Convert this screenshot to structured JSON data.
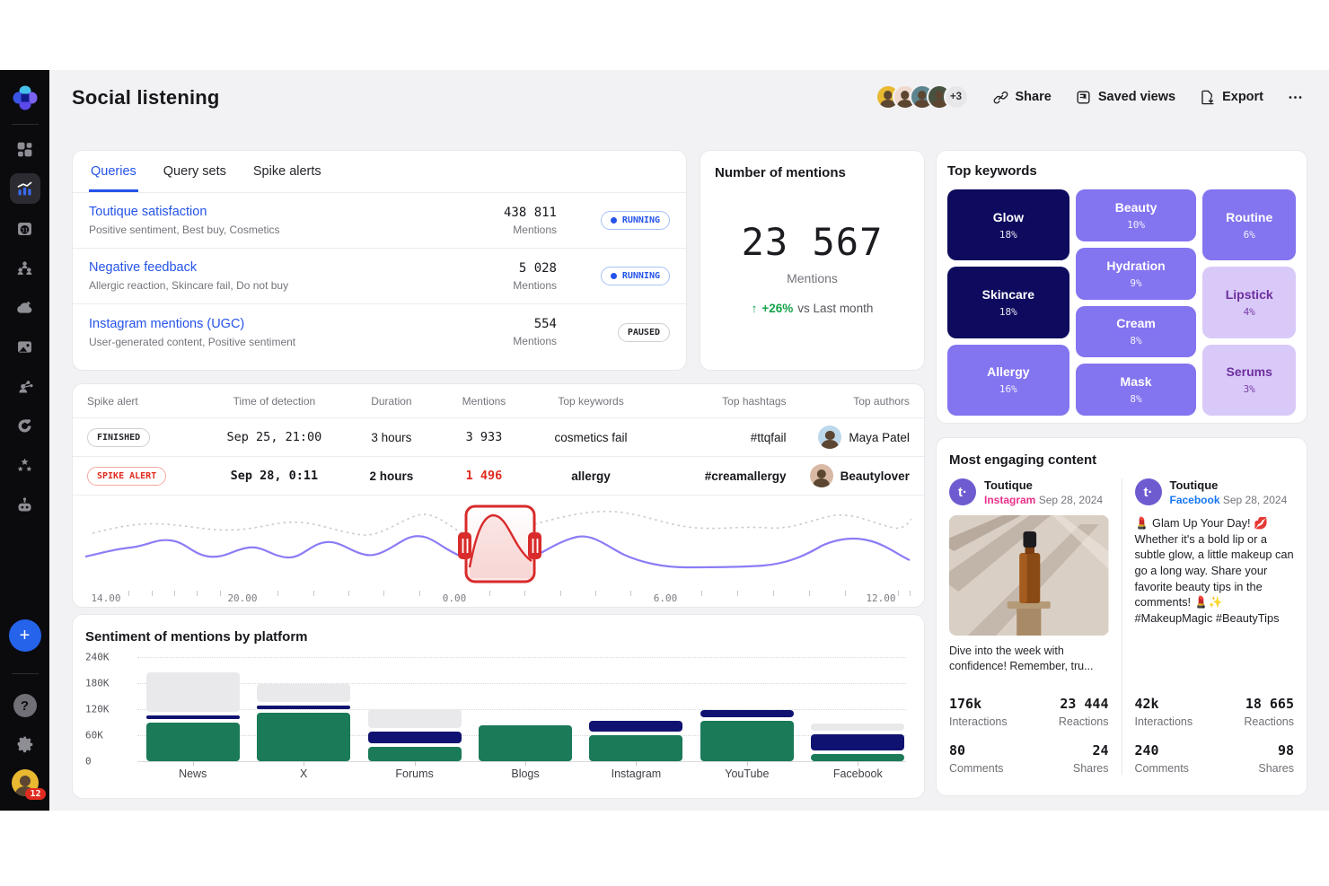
{
  "sidebar": {
    "plus_label": "+",
    "help_label": "?",
    "badge_count": "12",
    "nav_icon_names": [
      "dashboard-icon",
      "analytics-icon",
      "calendar-icon",
      "audience-icon",
      "cloud-add-icon",
      "media-icon",
      "profile-share-icon",
      "engagement-icon",
      "favorites-icon",
      "assistant-icon"
    ]
  },
  "header": {
    "title": "Social listening",
    "avatars_extra": "+3",
    "share_label": "Share",
    "saved_views_label": "Saved views",
    "export_label": "Export"
  },
  "queries": {
    "tabs": [
      {
        "label": "Queries",
        "active": true
      },
      {
        "label": "Query sets",
        "active": false
      },
      {
        "label": "Spike alerts",
        "active": false
      }
    ],
    "rows": [
      {
        "title": "Toutique satisfaction",
        "subtitle": "Positive sentiment, Best buy, Cosmetics",
        "value": "438 811",
        "value_label": "Mentions",
        "status": "RUNNING",
        "kind": "running"
      },
      {
        "title": "Negative feedback",
        "subtitle": "Allergic reaction, Skincare fail, Do not buy",
        "value": "5 028",
        "value_label": "Mentions",
        "status": "RUNNING",
        "kind": "running"
      },
      {
        "title": "Instagram mentions (UGC)",
        "subtitle": "User-generated content, Positive sentiment",
        "value": "554",
        "value_label": "Mentions",
        "status": "PAUSED",
        "kind": "paused"
      }
    ]
  },
  "mentions": {
    "title": "Number of mentions",
    "value": "23 567",
    "label": "Mentions",
    "delta_arrow": "↑",
    "delta": "+26%",
    "delta_note": "vs Last month"
  },
  "keywords": {
    "title": "Top keywords",
    "columns": [
      [
        {
          "label": "Glow",
          "pct": "18%",
          "tone": "dark"
        },
        {
          "label": "Skincare",
          "pct": "18%",
          "tone": "dark"
        },
        {
          "label": "Allergy",
          "pct": "16%",
          "tone": "mid"
        }
      ],
      [
        {
          "label": "Beauty",
          "pct": "10%",
          "tone": "mid"
        },
        {
          "label": "Hydration",
          "pct": "9%",
          "tone": "mid"
        },
        {
          "label": "Cream",
          "pct": "8%",
          "tone": "mid"
        },
        {
          "label": "Mask",
          "pct": "8%",
          "tone": "mid"
        }
      ],
      [
        {
          "label": "Routine",
          "pct": "6%",
          "tone": "mid"
        },
        {
          "label": "Lipstick",
          "pct": "4%",
          "tone": "light"
        },
        {
          "label": "Serums",
          "pct": "3%",
          "tone": "light"
        }
      ]
    ]
  },
  "spike": {
    "headers": [
      "Spike alert",
      "Time of detection",
      "Duration",
      "Mentions",
      "Top keywords",
      "Top hashtags",
      "Top authors"
    ],
    "rows": [
      {
        "status": "FINISHED",
        "kind": "finished",
        "time": "Sep 25, 21:00",
        "duration": "3 hours",
        "mentions": "3 933",
        "mentions_red": false,
        "keyword": "cosmetics fail",
        "hashtag": "#ttqfail",
        "author": "Maya Patel",
        "bold": false,
        "avatar_bg": "#bcd8ea",
        "avatar_fg": "#f3efe8"
      },
      {
        "status": "SPIKE ALERT",
        "kind": "alert",
        "time": "Sep 28, 0:11",
        "duration": "2 hours",
        "mentions": "1 496",
        "mentions_red": true,
        "keyword": "allergy",
        "hashtag": "#creamallergy",
        "author": "Beautylover",
        "bold": true,
        "avatar_bg": "#d9b9a5",
        "avatar_fg": "#4a3328"
      }
    ],
    "axis_labels": [
      "14.00",
      "20.00",
      "0.00",
      "6.00",
      "12.00"
    ]
  },
  "sentiment_title": "Sentiment of mentions by platform",
  "engaging": {
    "title": "Most engaging content",
    "brand_initial": "t",
    "posts": [
      {
        "brand": "Toutique",
        "platform": "Instagram",
        "platform_color": "#e9308a",
        "date": "Sep 28, 2024",
        "caption": "Dive into the week with confidence! Remember, tru...",
        "has_image": true,
        "stats": [
          {
            "v": "176k",
            "l": "Interactions"
          },
          {
            "v": "23 444",
            "l": "Reactions"
          },
          {
            "v": "80",
            "l": "Comments"
          },
          {
            "v": "24",
            "l": "Shares"
          }
        ]
      },
      {
        "brand": "Toutique",
        "platform": "Facebook",
        "platform_color": "#1877f2",
        "date": "Sep 28, 2024",
        "has_image": false,
        "body": "💄 Glam Up Your Day! 💋 Whether it's a bold lip or a subtle glow, a little makeup can go a long way. Share your favorite beauty tips in the comments! 💄✨ #MakeupMagic #BeautyTips",
        "stats": [
          {
            "v": "42k",
            "l": "Interactions"
          },
          {
            "v": "18 665",
            "l": "Reactions"
          },
          {
            "v": "240",
            "l": "Comments"
          },
          {
            "v": "98",
            "l": "Shares"
          }
        ]
      }
    ]
  },
  "chart_data": [
    {
      "type": "heatmap",
      "subtype": "treemap",
      "title": "Top keywords",
      "items": [
        {
          "label": "Glow",
          "value": 18
        },
        {
          "label": "Skincare",
          "value": 18
        },
        {
          "label": "Allergy",
          "value": 16
        },
        {
          "label": "Beauty",
          "value": 10
        },
        {
          "label": "Hydration",
          "value": 9
        },
        {
          "label": "Cream",
          "value": 8
        },
        {
          "label": "Mask",
          "value": 8
        },
        {
          "label": "Routine",
          "value": 6
        },
        {
          "label": "Lipstick",
          "value": 4
        },
        {
          "label": "Serums",
          "value": 3
        }
      ],
      "unit": "%",
      "colors": {
        "high": "#0e0a5e",
        "mid": "#8374f0",
        "low": "#d9c9f8"
      }
    },
    {
      "type": "bar",
      "stacked": true,
      "title": "Sentiment of mentions by platform",
      "categories": [
        "News",
        "X",
        "Forums",
        "Blogs",
        "Instagram",
        "YouTube",
        "Facebook"
      ],
      "series": [
        {
          "name": "positive",
          "color": "#1b7a57",
          "values": [
            94000,
            115000,
            38000,
            87000,
            64000,
            97000,
            20000
          ]
        },
        {
          "name": "negative",
          "color": "#0f1270",
          "values": [
            12000,
            14000,
            31000,
            0,
            29000,
            21000,
            42000
          ]
        },
        {
          "name": "neutral",
          "color": "#e9e9eb",
          "values": [
            95000,
            44000,
            47000,
            0,
            0,
            0,
            21000
          ]
        }
      ],
      "ylim": [
        0,
        240000
      ],
      "yticks": [
        {
          "label": "0",
          "value": 0
        },
        {
          "label": "60K",
          "value": 60000
        },
        {
          "label": "120K",
          "value": 120000
        },
        {
          "label": "180K",
          "value": 180000
        },
        {
          "label": "240K",
          "value": 240000
        }
      ],
      "grid": "dotted horizontal",
      "legend": "none"
    },
    {
      "type": "line",
      "title": "Spike alert timeline",
      "x_labels": [
        "14.00",
        "20.00",
        "0.00",
        "6.00",
        "12.00"
      ],
      "series": [
        {
          "name": "mentions",
          "color": "#8b7cf6",
          "style": "solid"
        },
        {
          "name": "baseline",
          "color": "#c9c9ce",
          "style": "dotted"
        }
      ],
      "annotation": {
        "kind": "selection",
        "color": "#d92b2b",
        "range": "spike around 0.00, duration 2 hours"
      }
    }
  ]
}
